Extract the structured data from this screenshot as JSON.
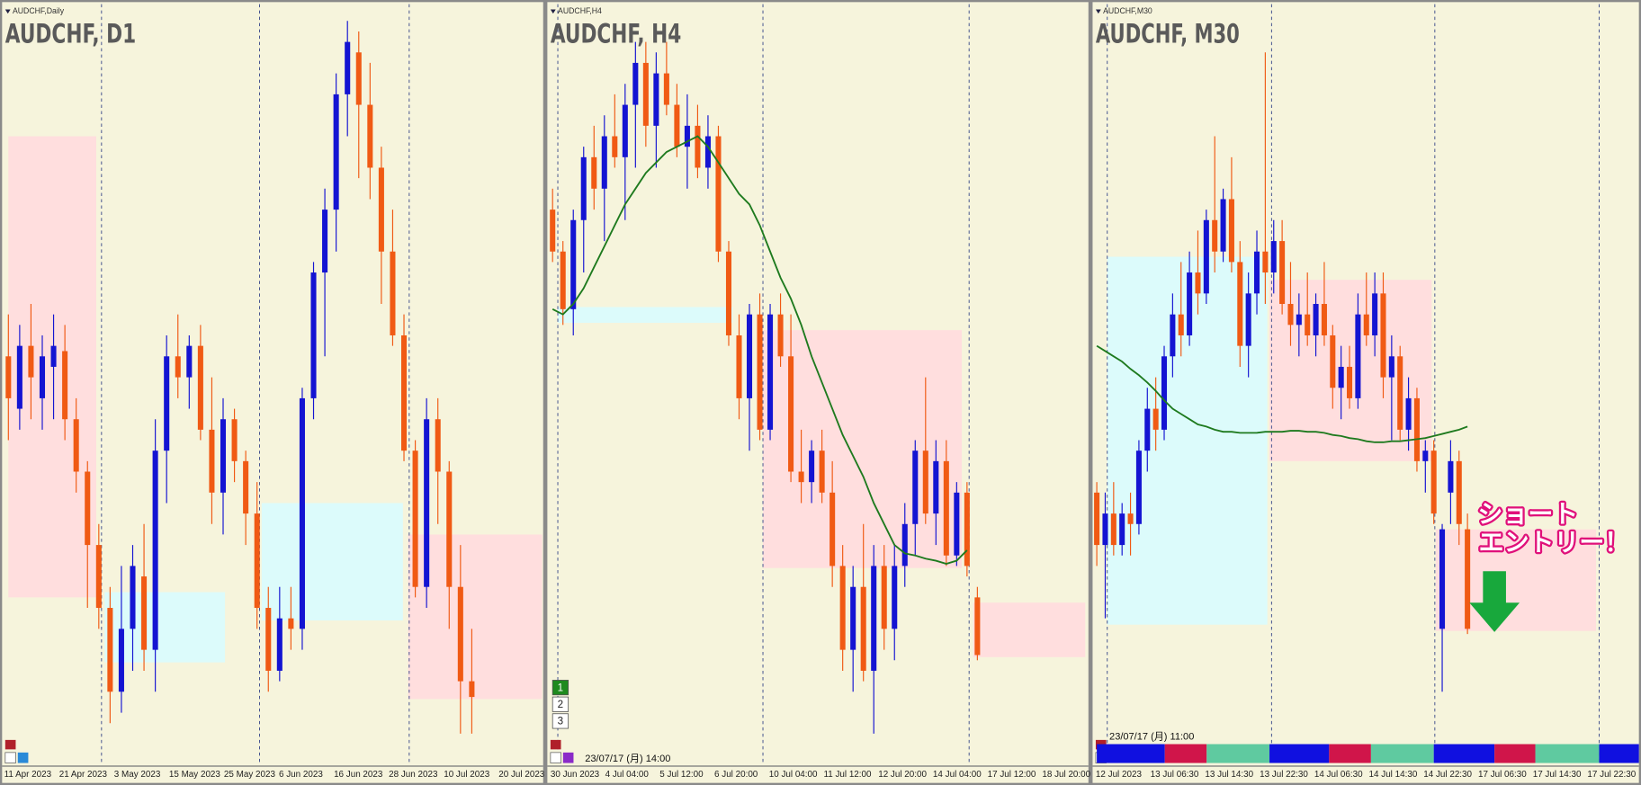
{
  "chart_data": [
    {
      "type": "candlestick",
      "header": "AUDCHF,Daily",
      "title": "AUDCHF, D1",
      "ylim": [
        5700,
        6449
      ],
      "up_color": "#1414d2",
      "down_color": "#f05a14",
      "xlabels": [
        "11 Apr 2023",
        "21 Apr 2023",
        "3 May 2023",
        "15 May 2023",
        "25 May 2023",
        "6 Jun 2023",
        "16 Jun 2023",
        "28 Jun 2023",
        "10 Jul 2023",
        "20 Jul 2023"
      ],
      "zones": [
        {
          "color": "#ffdede",
          "high": 6319,
          "low": 5879
        },
        {
          "color": "#dcfbfb",
          "high": 5884,
          "low": 5817
        },
        {
          "color": "#dcfbfb",
          "high": 5969,
          "low": 5857
        },
        {
          "color": "#ffdede",
          "high": 5939,
          "low": 5782
        }
      ],
      "candles": [
        [
          6109,
          6149,
          6029,
          6069
        ],
        [
          6059,
          6139,
          6039,
          6119
        ],
        [
          6119,
          6159,
          6049,
          6089
        ],
        [
          6069,
          6129,
          6039,
          6109
        ],
        [
          6099,
          6149,
          6049,
          6119
        ],
        [
          6114,
          6139,
          6029,
          6049
        ],
        [
          6049,
          6069,
          5979,
          5999
        ],
        [
          5999,
          6009,
          5869,
          5929
        ],
        [
          5929,
          5949,
          5849,
          5869
        ],
        [
          5869,
          5889,
          5759,
          5789
        ],
        [
          5789,
          5909,
          5769,
          5849
        ],
        [
          5849,
          5929,
          5809,
          5909
        ],
        [
          5899,
          5949,
          5809,
          5829
        ],
        [
          5829,
          6049,
          5789,
          6019
        ],
        [
          6019,
          6129,
          5969,
          6109
        ],
        [
          6109,
          6149,
          6069,
          6089
        ],
        [
          6089,
          6129,
          6059,
          6119
        ],
        [
          6119,
          6139,
          6029,
          6039
        ],
        [
          6039,
          6089,
          5949,
          5979
        ],
        [
          5979,
          6069,
          5939,
          6049
        ],
        [
          6049,
          6059,
          5989,
          6009
        ],
        [
          6009,
          6019,
          5929,
          5959
        ],
        [
          5959,
          5989,
          5849,
          5869
        ],
        [
          5869,
          5889,
          5789,
          5809
        ],
        [
          5809,
          5889,
          5799,
          5859
        ],
        [
          5859,
          5889,
          5829,
          5849
        ],
        [
          5849,
          6079,
          5829,
          6069
        ],
        [
          6069,
          6199,
          6049,
          6189
        ],
        [
          6189,
          6269,
          6109,
          6249
        ],
        [
          6249,
          6379,
          6209,
          6359
        ],
        [
          6359,
          6429,
          6319,
          6409
        ],
        [
          6399,
          6419,
          6279,
          6349
        ],
        [
          6349,
          6389,
          6259,
          6289
        ],
        [
          6289,
          6309,
          6159,
          6209
        ],
        [
          6209,
          6249,
          6119,
          6129
        ],
        [
          6129,
          6149,
          6009,
          6019
        ],
        [
          6019,
          6029,
          5879,
          5889
        ],
        [
          5889,
          6069,
          5869,
          6049
        ],
        [
          6049,
          6069,
          5949,
          5999
        ],
        [
          5999,
          6009,
          5849,
          5889
        ],
        [
          5889,
          5929,
          5749,
          5799
        ],
        [
          5799,
          5849,
          5749,
          5784
        ]
      ]
    },
    {
      "type": "candlestick",
      "header": "AUDCHF,H4",
      "title": "AUDCHF, H4",
      "timestamp": "23/07/17 (月) 14:00",
      "buttons": [
        "1",
        "2",
        "3"
      ],
      "ylim": [
        5700,
        6449
      ],
      "up_color": "#1414d2",
      "down_color": "#f05a14",
      "xlabels": [
        "30 Jun 2023",
        "4 Jul 04:00",
        "5 Jul 12:00",
        "6 Jul 20:00",
        "10 Jul 04:00",
        "11 Jul 12:00",
        "12 Jul 20:00",
        "14 Jul 04:00",
        "17 Jul 12:00",
        "18 Jul 20:00"
      ],
      "zones": [
        {
          "color": "#dcfbfb",
          "high": 6156,
          "low": 6141
        },
        {
          "color": "#ffdede",
          "high": 6134,
          "low": 5907
        },
        {
          "color": "#ffdede",
          "high": 5874,
          "low": 5822
        }
      ],
      "ma": {
        "color": "#1e7a1e",
        "values": [
          6154,
          6149,
          6159,
          6174,
          6194,
          6214,
          6234,
          6254,
          6269,
          6284,
          6294,
          6304,
          6309,
          6314,
          6319,
          6309,
          6294,
          6279,
          6264,
          6254,
          6234,
          6209,
          6184,
          6164,
          6139,
          6109,
          6084,
          6059,
          6034,
          6014,
          5994,
          5969,
          5949,
          5929,
          5921,
          5919,
          5916,
          5914,
          5911,
          5914,
          5924,
          null
        ]
      },
      "candles": [
        [
          6249,
          6269,
          6199,
          6209
        ],
        [
          6209,
          6219,
          6139,
          6154
        ],
        [
          6154,
          6249,
          6129,
          6239
        ],
        [
          6239,
          6309,
          6189,
          6299
        ],
        [
          6299,
          6329,
          6249,
          6269
        ],
        [
          6269,
          6339,
          6219,
          6319
        ],
        [
          6319,
          6359,
          6289,
          6299
        ],
        [
          6299,
          6369,
          6239,
          6349
        ],
        [
          6349,
          6409,
          6289,
          6389
        ],
        [
          6389,
          6409,
          6309,
          6329
        ],
        [
          6329,
          6399,
          6289,
          6379
        ],
        [
          6379,
          6409,
          6339,
          6349
        ],
        [
          6349,
          6369,
          6299,
          6309
        ],
        [
          6309,
          6359,
          6269,
          6329
        ],
        [
          6329,
          6349,
          6279,
          6289
        ],
        [
          6289,
          6339,
          6269,
          6319
        ],
        [
          6319,
          6329,
          6199,
          6209
        ],
        [
          6209,
          6219,
          6119,
          6129
        ],
        [
          6129,
          6149,
          6049,
          6069
        ],
        [
          6069,
          6159,
          6019,
          6149
        ],
        [
          6149,
          6169,
          6029,
          6039
        ],
        [
          6039,
          6159,
          6029,
          6149
        ],
        [
          6149,
          6169,
          6099,
          6109
        ],
        [
          6109,
          6149,
          5989,
          5999
        ],
        [
          5999,
          6039,
          5969,
          5989
        ],
        [
          5989,
          6029,
          5969,
          6019
        ],
        [
          6019,
          6039,
          5969,
          5979
        ],
        [
          5979,
          6009,
          5889,
          5909
        ],
        [
          5909,
          5929,
          5809,
          5829
        ],
        [
          5829,
          5909,
          5789,
          5889
        ],
        [
          5889,
          5949,
          5799,
          5809
        ],
        [
          5809,
          5929,
          5749,
          5909
        ],
        [
          5909,
          5929,
          5829,
          5849
        ],
        [
          5849,
          5929,
          5819,
          5909
        ],
        [
          5909,
          5969,
          5889,
          5949
        ],
        [
          5949,
          6029,
          5919,
          6019
        ],
        [
          6019,
          6089,
          5949,
          5959
        ],
        [
          5959,
          6029,
          5929,
          6009
        ],
        [
          6009,
          6029,
          5909,
          5919
        ],
        [
          5919,
          5989,
          5909,
          5979
        ],
        [
          5979,
          5989,
          5899,
          5909
        ],
        [
          5879,
          5889,
          5819,
          5824
        ]
      ]
    },
    {
      "type": "candlestick",
      "header": "AUDCHF,M30",
      "title": "AUDCHF, M30",
      "timestamp": "23/07/17 (月) 11:00",
      "annotation": [
        "ショート",
        "エントリー！"
      ],
      "ylim": [
        5700,
        6449
      ],
      "up_color": "#1414d2",
      "down_color": "#f05a14",
      "xlabels": [
        "12 Jul 2023",
        "13 Jul 06:30",
        "13 Jul 14:30",
        "13 Jul 22:30",
        "14 Jul 06:30",
        "14 Jul 14:30",
        "14 Jul 22:30",
        "17 Jul 06:30",
        "17 Jul 14:30",
        "17 Jul 22:30"
      ],
      "zones": [
        {
          "color": "#dcfbfb",
          "high": 6204,
          "low": 5853
        },
        {
          "color": "#ffdede",
          "high": 6182,
          "low": 6009
        },
        {
          "color": "#ffdede",
          "high": 5944,
          "low": 5847
        }
      ],
      "ma": {
        "color": "#1e7a1e",
        "values": [
          6119,
          6114,
          6109,
          6104,
          6097,
          6091,
          6084,
          6076,
          6067,
          6059,
          6054,
          6049,
          6044,
          6042,
          6039,
          6037,
          6037,
          6036,
          6036,
          6036,
          6037,
          6037,
          6037,
          6038,
          6038,
          6037,
          6037,
          6036,
          6034,
          6033,
          6031,
          6030,
          6028,
          6027,
          6027,
          6028,
          6028,
          6029,
          6030,
          6031,
          6033,
          6035,
          6037,
          6039,
          6042
        ]
      },
      "candles": [
        [
          5979,
          5989,
          5909,
          5929
        ],
        [
          5929,
          5979,
          5859,
          5959
        ],
        [
          5959,
          5989,
          5919,
          5929
        ],
        [
          5929,
          5969,
          5919,
          5959
        ],
        [
          5959,
          5979,
          5919,
          5949
        ],
        [
          5949,
          6029,
          5939,
          6019
        ],
        [
          6019,
          6079,
          5999,
          6059
        ],
        [
          6059,
          6089,
          6019,
          6039
        ],
        [
          6039,
          6119,
          6029,
          6109
        ],
        [
          6109,
          6169,
          6089,
          6149
        ],
        [
          6149,
          6199,
          6109,
          6129
        ],
        [
          6129,
          6209,
          6119,
          6189
        ],
        [
          6189,
          6229,
          6149,
          6169
        ],
        [
          6169,
          6249,
          6159,
          6239
        ],
        [
          6239,
          6319,
          6189,
          6209
        ],
        [
          6209,
          6269,
          6199,
          6259
        ],
        [
          6259,
          6299,
          6189,
          6199
        ],
        [
          6199,
          6219,
          6099,
          6119
        ],
        [
          6119,
          6189,
          6089,
          6169
        ],
        [
          6169,
          6229,
          6149,
          6209
        ],
        [
          6209,
          6399,
          6159,
          6189
        ],
        [
          6189,
          6239,
          6169,
          6219
        ],
        [
          6219,
          6239,
          6149,
          6159
        ],
        [
          6159,
          6199,
          6119,
          6139
        ],
        [
          6139,
          6169,
          6109,
          6149
        ],
        [
          6149,
          6189,
          6119,
          6129
        ],
        [
          6129,
          6169,
          6109,
          6159
        ],
        [
          6159,
          6199,
          6119,
          6129
        ],
        [
          6129,
          6139,
          6059,
          6079
        ],
        [
          6079,
          6119,
          6049,
          6099
        ],
        [
          6099,
          6119,
          6059,
          6069
        ],
        [
          6069,
          6169,
          6059,
          6149
        ],
        [
          6149,
          6189,
          6119,
          6129
        ],
        [
          6129,
          6189,
          6109,
          6169
        ],
        [
          6169,
          6189,
          6069,
          6089
        ],
        [
          6089,
          6129,
          6029,
          6109
        ],
        [
          6109,
          6119,
          6029,
          6039
        ],
        [
          6039,
          6089,
          6019,
          6069
        ],
        [
          6069,
          6079,
          5999,
          6009
        ],
        [
          6009,
          6029,
          5979,
          6019
        ],
        [
          6019,
          6029,
          5949,
          5959
        ],
        [
          5849,
          5949,
          5789,
          5944
        ],
        [
          5979,
          6029,
          5949,
          6009
        ],
        [
          6009,
          6019,
          5929,
          5949
        ],
        [
          5944,
          5959,
          5844,
          5849
        ]
      ]
    }
  ]
}
